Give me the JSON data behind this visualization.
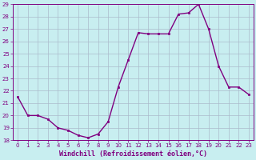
{
  "x": [
    0,
    1,
    2,
    3,
    4,
    5,
    6,
    7,
    8,
    9,
    10,
    11,
    12,
    13,
    14,
    15,
    16,
    17,
    18,
    19,
    20,
    21,
    22,
    23
  ],
  "y": [
    21.5,
    20.0,
    20.0,
    19.7,
    19.0,
    18.8,
    18.4,
    18.2,
    18.5,
    19.5,
    22.3,
    24.5,
    26.7,
    26.6,
    26.6,
    26.6,
    28.2,
    28.3,
    29.0,
    27.0,
    24.0,
    22.3,
    22.3,
    21.7
  ],
  "line_color": "#800080",
  "marker": "s",
  "marker_size": 2,
  "bg_color": "#c8eef0",
  "grid_color": "#aabbcc",
  "xlabel": "Windchill (Refroidissement éolien,°C)",
  "ylim": [
    18,
    29
  ],
  "xlim": [
    -0.5,
    23.5
  ],
  "yticks": [
    18,
    19,
    20,
    21,
    22,
    23,
    24,
    25,
    26,
    27,
    28,
    29
  ],
  "xticks": [
    0,
    1,
    2,
    3,
    4,
    5,
    6,
    7,
    8,
    9,
    10,
    11,
    12,
    13,
    14,
    15,
    16,
    17,
    18,
    19,
    20,
    21,
    22,
    23
  ],
  "tick_color": "#800080",
  "spine_color": "#800080",
  "xlabel_fontsize": 6.0,
  "tick_fontsize": 5.0,
  "linewidth": 1.0
}
